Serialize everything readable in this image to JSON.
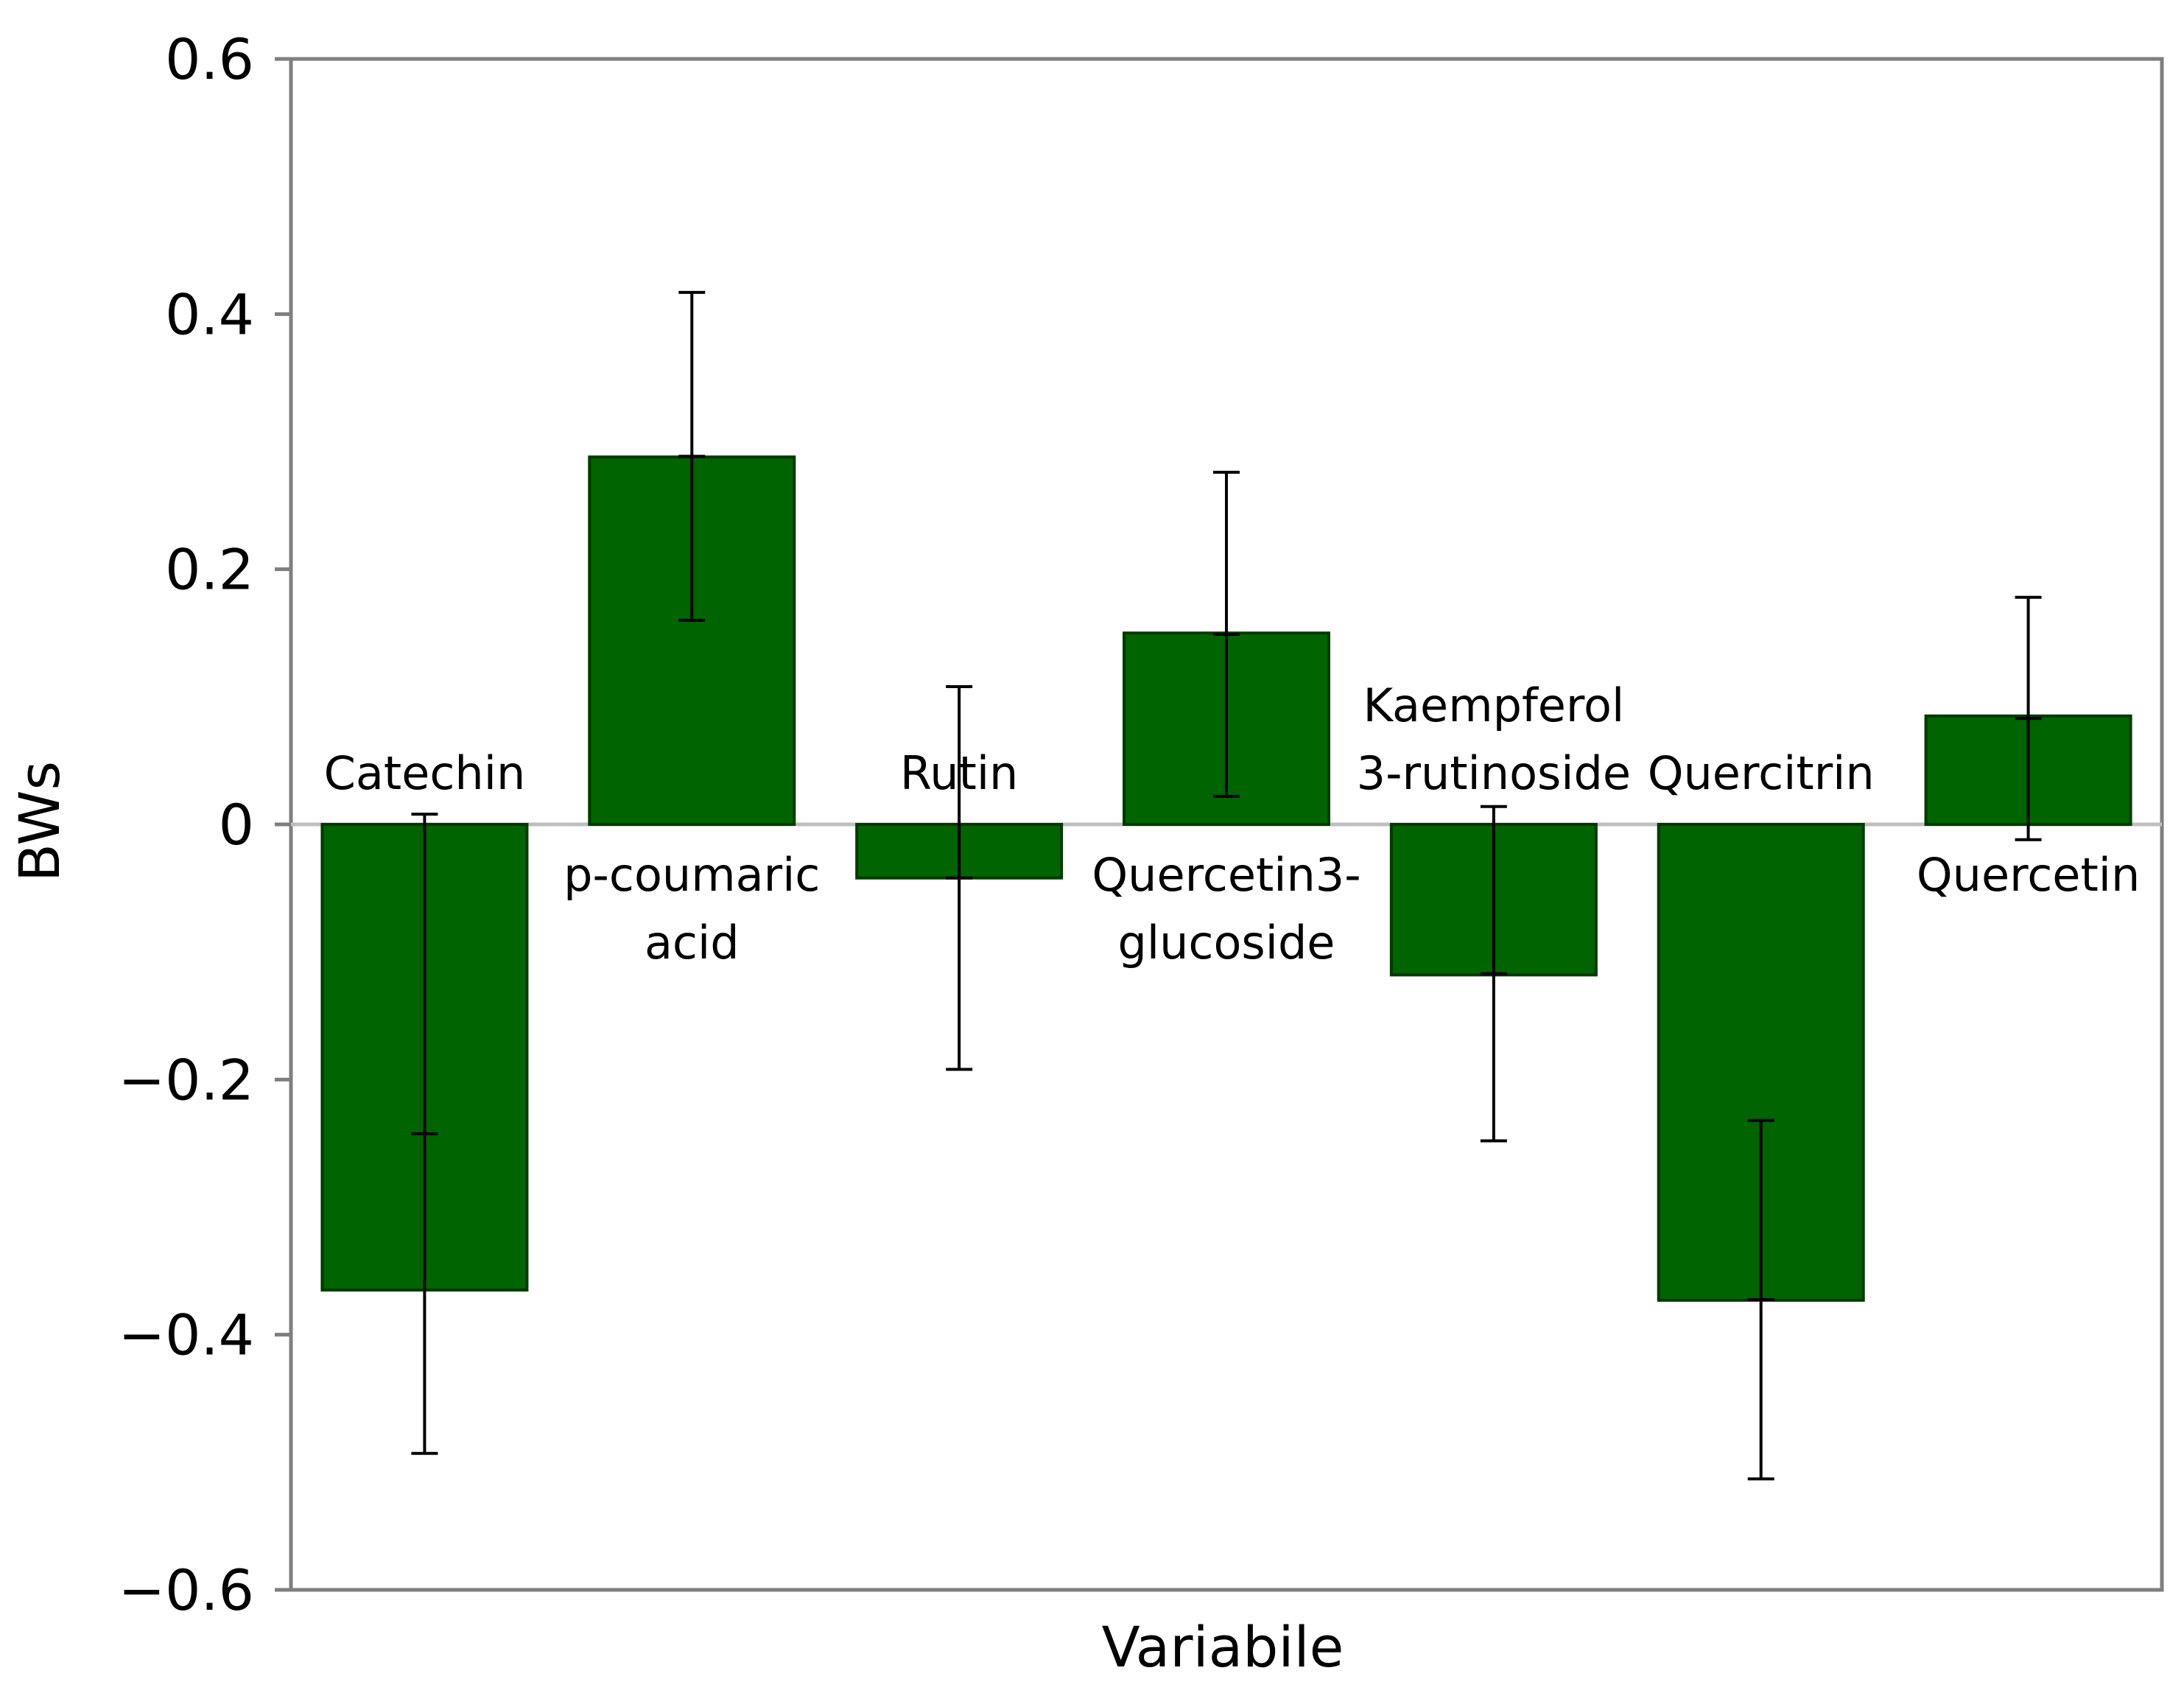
{
  "chart_data": {
    "type": "bar",
    "title": "",
    "xlabel": "Variabile",
    "ylabel": "BWs",
    "ylim": [
      -0.6,
      0.6
    ],
    "yticks": [
      "0.6",
      "0.4",
      "0.2",
      "0",
      "−0.2",
      "−0.4",
      "−0.6"
    ],
    "ytick_values": [
      0.6,
      0.4,
      0.2,
      0,
      -0.2,
      -0.4,
      -0.6
    ],
    "grid": false,
    "legend": "none",
    "categories": [
      [
        "Catechin"
      ],
      [
        "p-coumaric",
        "acid"
      ],
      [
        "Rutin"
      ],
      [
        "Quercetin3-",
        "glucoside"
      ],
      [
        "Kaempferol",
        "3-rutinoside"
      ],
      [
        "Quercitrin"
      ],
      [
        "Quercetin"
      ]
    ],
    "values": [
      -0.365,
      0.288,
      -0.042,
      0.15,
      -0.118,
      -0.373,
      0.085
    ],
    "error_low": [
      -0.493,
      0.16,
      -0.192,
      0.022,
      -0.248,
      -0.513,
      -0.012
    ],
    "error_high": [
      0.008,
      0.417,
      0.108,
      0.276,
      0.014,
      -0.232,
      0.178
    ],
    "colors": {
      "bar": "#006400",
      "bar_edge": "#003a00",
      "axis": "#7f7f7f",
      "zero_line": "#bfbfbf",
      "error_bar": "#000000"
    }
  }
}
